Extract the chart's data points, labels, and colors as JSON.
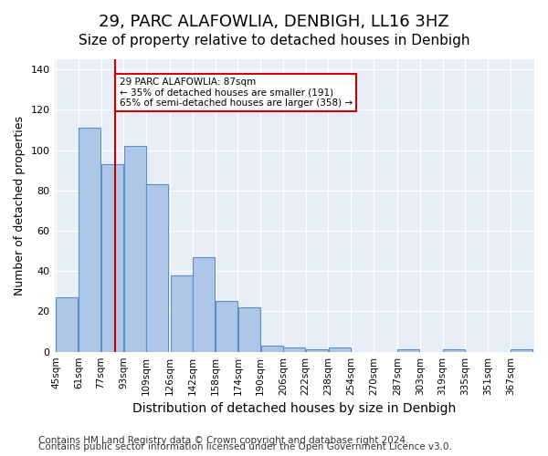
{
  "title1": "29, PARC ALAFOWLIA, DENBIGH, LL16 3HZ",
  "title2": "Size of property relative to detached houses in Denbigh",
  "xlabel": "Distribution of detached houses by size in Denbigh",
  "ylabel": "Number of detached properties",
  "bar_values": [
    27,
    111,
    93,
    102,
    83,
    38,
    47,
    25,
    22,
    3,
    2,
    1,
    2,
    0,
    0,
    1,
    0,
    1,
    0,
    0,
    1
  ],
  "bin_labels": [
    "45sqm",
    "61sqm",
    "77sqm",
    "93sqm",
    "109sqm",
    "126sqm",
    "142sqm",
    "158sqm",
    "174sqm",
    "190sqm",
    "206sqm",
    "222sqm",
    "238sqm",
    "254sqm",
    "270sqm",
    "287sqm",
    "303sqm",
    "319sqm",
    "335sqm",
    "351sqm",
    "367sqm"
  ],
  "bin_edges": [
    45,
    61,
    77,
    93,
    109,
    126,
    142,
    158,
    174,
    190,
    206,
    222,
    238,
    254,
    270,
    287,
    303,
    319,
    335,
    351,
    367
  ],
  "bin_width": 16,
  "bar_color": "#aec6e8",
  "bar_edge_color": "#5b8fc9",
  "vline_x": 87,
  "vline_color": "#cc0000",
  "annotation_text": "29 PARC ALAFOWLIA: 87sqm\n← 35% of detached houses are smaller (191)\n65% of semi-detached houses are larger (358) →",
  "annotation_box_color": "white",
  "annotation_box_edge": "#cc0000",
  "ylim": [
    0,
    145
  ],
  "yticks": [
    0,
    20,
    40,
    60,
    80,
    100,
    120,
    140
  ],
  "footer1": "Contains HM Land Registry data © Crown copyright and database right 2024.",
  "footer2": "Contains public sector information licensed under the Open Government Licence v3.0.",
  "background_color": "#e8eef7",
  "grid_color": "white",
  "title1_fontsize": 13,
  "title2_fontsize": 11,
  "xlabel_fontsize": 10,
  "ylabel_fontsize": 9,
  "footer_fontsize": 7.5
}
